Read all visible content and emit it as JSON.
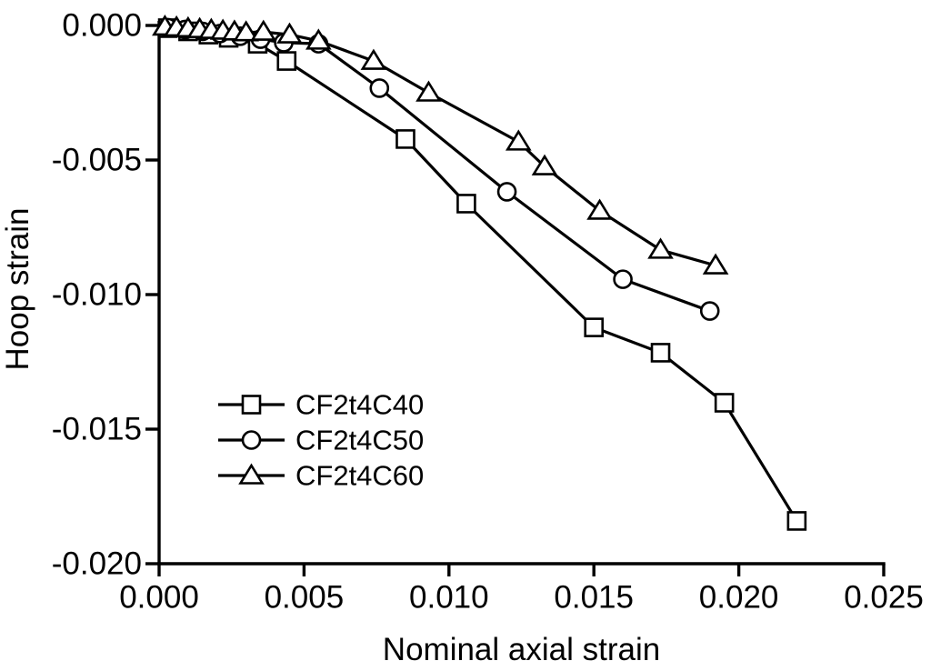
{
  "figure": {
    "background": "#ffffff",
    "foreground": "#000000"
  },
  "chart_data": {
    "type": "line",
    "title": "",
    "xlabel": "Nominal axial strain",
    "ylabel": "Hoop strain",
    "xlim": [
      0.0,
      0.025
    ],
    "ylim": [
      -0.02,
      0.0
    ],
    "grid": false,
    "legend_position": "inside-lower-left",
    "line_color": "#000000",
    "marker_fill": "#ffffff",
    "xticks": [
      {
        "v": 0.0,
        "label": "0.000"
      },
      {
        "v": 0.005,
        "label": "0.005"
      },
      {
        "v": 0.01,
        "label": "0.010"
      },
      {
        "v": 0.015,
        "label": "0.015"
      },
      {
        "v": 0.02,
        "label": "0.020"
      },
      {
        "v": 0.025,
        "label": "0.025"
      }
    ],
    "yticks": [
      {
        "v": 0.0,
        "label": "0.000"
      },
      {
        "v": -0.005,
        "label": "-0.005"
      },
      {
        "v": -0.01,
        "label": "-0.010"
      },
      {
        "v": -0.015,
        "label": "-0.015"
      },
      {
        "v": -0.02,
        "label": "-0.020"
      }
    ],
    "series": [
      {
        "name": "CF2t4C40",
        "marker": "square",
        "points": [
          [
            0.0003,
            -0.0001
          ],
          [
            0.001,
            -0.00022
          ],
          [
            0.0017,
            -0.00034
          ],
          [
            0.0024,
            -0.00046
          ],
          [
            0.0034,
            -0.00068
          ],
          [
            0.0044,
            -0.00132
          ],
          [
            0.0085,
            -0.00422
          ],
          [
            0.0106,
            -0.00662
          ],
          [
            0.015,
            -0.01122
          ],
          [
            0.0173,
            -0.01216
          ],
          [
            0.0195,
            -0.01402
          ],
          [
            0.022,
            -0.01841
          ]
        ]
      },
      {
        "name": "CF2t4C50",
        "marker": "circle",
        "points": [
          [
            0.0003,
            -8e-05
          ],
          [
            0.0009,
            -0.00015
          ],
          [
            0.0015,
            -0.00022
          ],
          [
            0.0021,
            -0.0003
          ],
          [
            0.0028,
            -0.0004
          ],
          [
            0.0035,
            -0.00051
          ],
          [
            0.0043,
            -0.00064
          ],
          [
            0.0055,
            -0.00068
          ],
          [
            0.0076,
            -0.00233
          ],
          [
            0.012,
            -0.00618
          ],
          [
            0.016,
            -0.00943
          ],
          [
            0.019,
            -0.01061
          ]
        ]
      },
      {
        "name": "CF2t4C60",
        "marker": "triangle",
        "points": [
          [
            0.0002,
            -5e-05
          ],
          [
            0.0006,
            -8e-05
          ],
          [
            0.001,
            -0.00011
          ],
          [
            0.0014,
            -0.00014
          ],
          [
            0.0018,
            -0.00017
          ],
          [
            0.0022,
            -0.0002
          ],
          [
            0.0026,
            -0.00023
          ],
          [
            0.003,
            -0.00026
          ],
          [
            0.0036,
            -0.00024
          ],
          [
            0.0045,
            -0.00034
          ],
          [
            0.0055,
            -0.00057
          ],
          [
            0.0074,
            -0.00132
          ],
          [
            0.0093,
            -0.0025
          ],
          [
            0.0124,
            -0.00432
          ],
          [
            0.0133,
            -0.00524
          ],
          [
            0.0152,
            -0.00689
          ],
          [
            0.0173,
            -0.00834
          ],
          [
            0.0192,
            -0.00892
          ]
        ]
      }
    ]
  }
}
